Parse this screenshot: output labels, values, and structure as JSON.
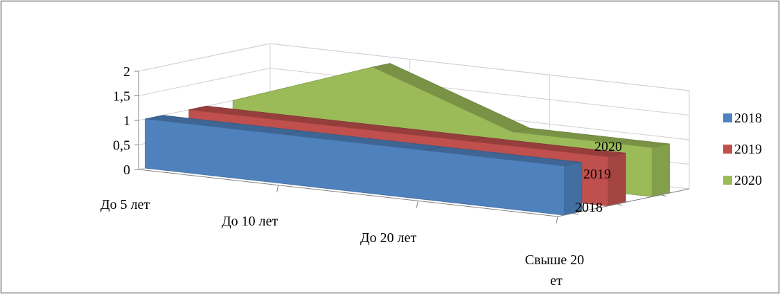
{
  "chart_data": {
    "type": "area",
    "view": "3d",
    "categories": [
      "До 5 лет",
      "До 10 лет",
      "До 20 лет",
      "Свыше 20 лет"
    ],
    "series": [
      {
        "name": "2018",
        "values": [
          1,
          1,
          1,
          1
        ],
        "color": "#4F81BD"
      },
      {
        "name": "2019",
        "values": [
          1,
          1,
          1,
          1
        ],
        "color": "#C0504D"
      },
      {
        "name": "2020",
        "values": [
          1,
          2,
          1,
          1
        ],
        "color": "#9BBB59"
      }
    ],
    "y_ticks": [
      "0",
      "0,5",
      "1",
      "1,5",
      "2"
    ],
    "ylim": [
      0,
      2
    ],
    "depth_labels": [
      "2018",
      "2019",
      "2020"
    ],
    "grid": true,
    "legend_position": "right",
    "title": "",
    "xlabel": "",
    "ylabel": ""
  }
}
